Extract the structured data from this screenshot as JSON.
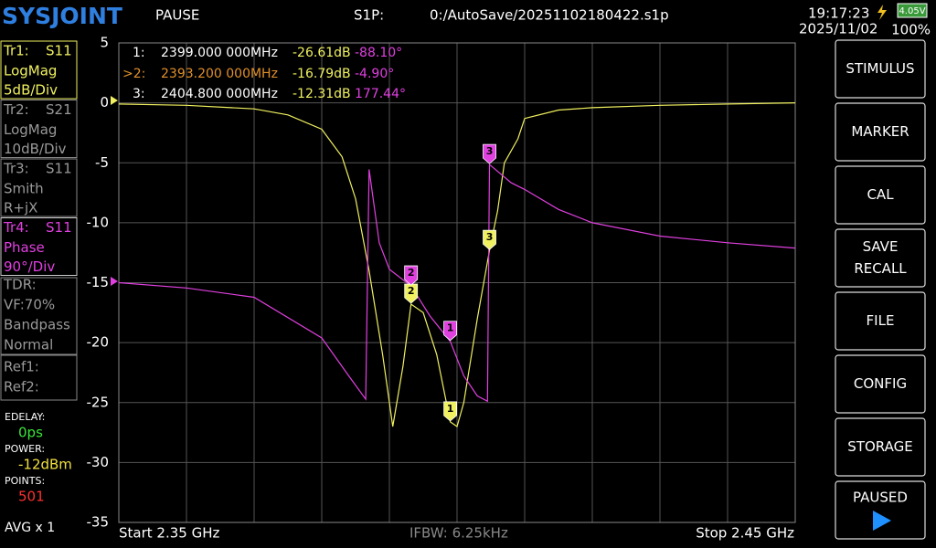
{
  "header": {
    "logo": "SYSJOINT",
    "state": "PAUSE",
    "format": "S1P:",
    "file": "0:/AutoSave/20251102180422.s1p",
    "time": "19:17:23",
    "date": "2025/11/02",
    "battery_voltage": "4.05V",
    "battery_percent": "100%"
  },
  "traces": [
    {
      "name": "Tr1:",
      "param": "S11",
      "format": "LogMag",
      "scale": "5dB/Div"
    },
    {
      "name": "Tr2:",
      "param": "S21",
      "format": "LogMag",
      "scale": "10dB/Div"
    },
    {
      "name": "Tr3:",
      "param": "S11",
      "format": "Smith",
      "scale": "R+jX"
    },
    {
      "name": "Tr4:",
      "param": "S11",
      "format": "Phase",
      "scale": "90°/Div"
    }
  ],
  "tdr": [
    "TDR:",
    "VF:70%",
    "Bandpass",
    "Normal"
  ],
  "refs": [
    "Ref1:",
    "Ref2:"
  ],
  "settings": [
    {
      "label": "EDELAY:",
      "value": "0ps",
      "color": "#39e639"
    },
    {
      "label": "POWER:",
      "value": "-12dBm",
      "color": "#f0e040"
    },
    {
      "label": "POINTS:",
      "value": "501",
      "color": "#ff3030"
    }
  ],
  "avg": "AVG x 1",
  "buttons": [
    [
      "STIMULUS"
    ],
    [
      "MARKER"
    ],
    [
      "CAL"
    ],
    [
      "SAVE",
      "RECALL"
    ],
    [
      "FILE"
    ],
    [
      "CONFIG"
    ],
    [
      "STORAGE"
    ],
    [
      "PAUSED"
    ]
  ],
  "marker_table": [
    {
      "id": "1:",
      "freq": "2399.000 000MHz",
      "mag": "-26.61dB",
      "phase": "-88.10°"
    },
    {
      "id": ">2:",
      "freq": "2393.200 000MHz",
      "mag": "-16.79dB",
      "phase": "-4.90°"
    },
    {
      "id": "3:",
      "freq": "2404.800 000MHz",
      "mag": "-12.31dB",
      "phase": "177.44°"
    }
  ],
  "footer": {
    "start": "Start  2.35 GHz",
    "ifbw": "IFBW: 6.25kHz",
    "stop": "Stop  2.45 GHz"
  },
  "chart_data": {
    "type": "line",
    "xlim": [
      2.35,
      2.45
    ],
    "ylim": [
      -35,
      5
    ],
    "yticks": [
      5,
      0,
      -5,
      -10,
      -15,
      -20,
      -25,
      -30,
      -35
    ],
    "y2lim": [
      -360,
      360
    ],
    "grid": true,
    "series": [
      {
        "color": "#f0f060",
        "x": [
          2.35,
          2.36,
          2.37,
          2.375,
          2.38,
          2.383,
          2.385,
          2.387,
          2.389,
          2.3905,
          2.392,
          2.3932,
          2.395,
          2.397,
          2.399,
          2.4,
          2.401,
          2.403,
          2.4048,
          2.406,
          2.407,
          2.409,
          2.41,
          2.415,
          2.42,
          2.43,
          2.44,
          2.45
        ],
        "values": [
          -0.1,
          -0.2,
          -0.5,
          -1.0,
          -2.2,
          -4.5,
          -8,
          -14,
          -21,
          -27,
          -22,
          -16.79,
          -17.5,
          -21,
          -26.61,
          -27,
          -25,
          -18,
          -12.31,
          -9,
          -5,
          -3,
          -1.3,
          -0.6,
          -0.4,
          -0.2,
          -0.1,
          0
        ]
      },
      {
        "color": "#e040e0",
        "axis": "y2",
        "x": [
          2.35,
          2.36,
          2.37,
          2.38,
          2.384,
          2.3865,
          2.387,
          2.3885,
          2.39,
          2.3932,
          2.396,
          2.399,
          2.401,
          2.403,
          2.4045,
          2.4048,
          2.408,
          2.41,
          2.415,
          2.42,
          2.43,
          2.44,
          2.45
        ],
        "values": [
          0,
          -8,
          -22,
          -83,
          -140,
          -175,
          170,
          60,
          20,
          -4.9,
          -50,
          -88.1,
          -140,
          -170,
          -178,
          177.44,
          150,
          140,
          110,
          90,
          70,
          60,
          52
        ]
      }
    ],
    "markers": [
      {
        "label": "1",
        "x": 2.399
      },
      {
        "label": "2",
        "x": 2.3932
      },
      {
        "label": "3",
        "x": 2.4048
      }
    ]
  }
}
